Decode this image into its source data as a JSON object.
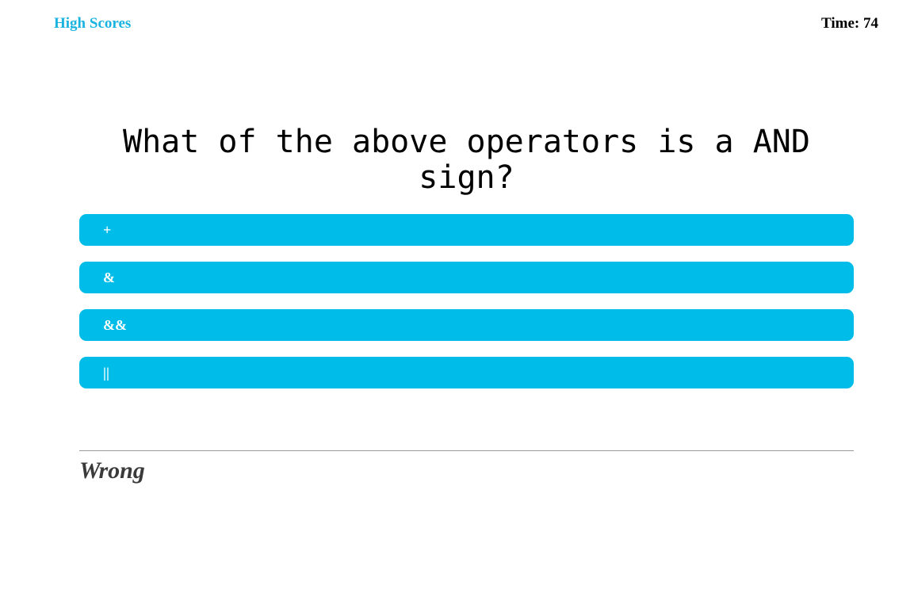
{
  "header": {
    "high_scores_label": "High Scores",
    "timer_text": "Time: 74"
  },
  "quiz": {
    "question": "What of the above operators is a AND sign?",
    "answers": [
      {
        "label": "+"
      },
      {
        "label": "&"
      },
      {
        "label": "&&"
      },
      {
        "label": "||"
      }
    ],
    "feedback": "Wrong"
  },
  "colors": {
    "accent": "#00bce8",
    "link": "#1ab3e0",
    "feedback_text": "#3a3a3a",
    "divider": "#9a9a9a"
  }
}
